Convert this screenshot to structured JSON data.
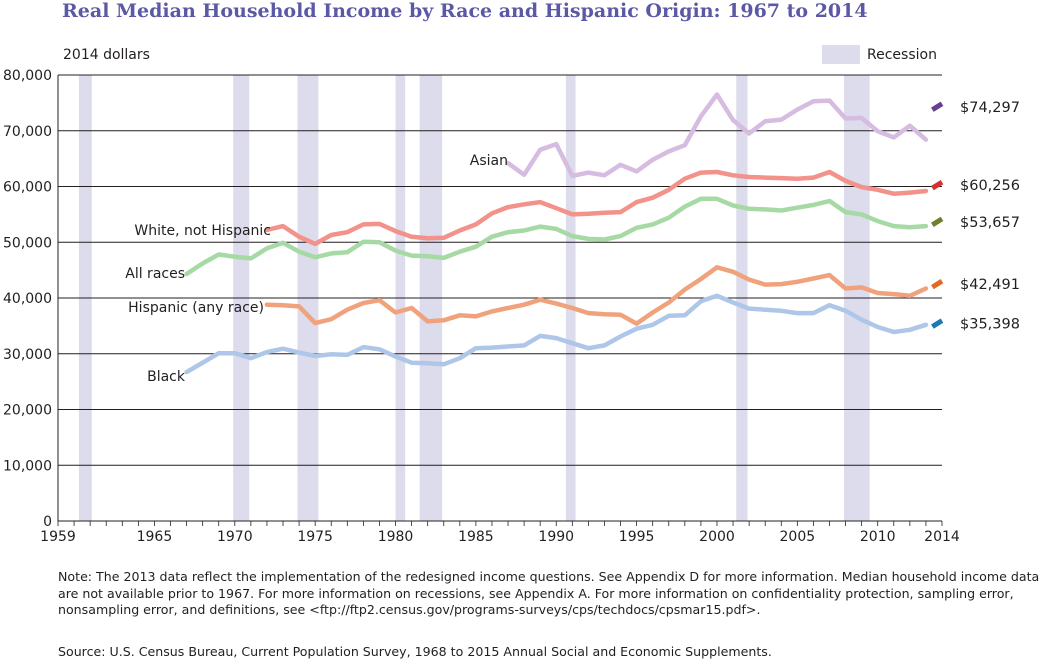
{
  "title": "Real Median Household Income by Race and Hispanic Origin: 1967 to 2014",
  "units_label": "2014 dollars",
  "legend": {
    "label": "Recession",
    "color": "#dcdcec"
  },
  "notes": "Note: The 2013 data reflect the implementation of the redesigned income questions. See Appendix D for more information. Median household income data are not available prior to 1967. For more information on recessions, see Appendix A. For more information on confidentiality protection, sampling error, nonsampling error, and definitions, see <ftp://ftp2.census.gov/programs-surveys/cps/techdocs/cpsmar15.pdf>.",
  "source": "Source: U.S. Census Bureau, Current Population Survey, 1968 to 2015 Annual Social and Economic Supplements.",
  "chart_data": {
    "type": "line",
    "title": "Real Median Household Income by Race and Hispanic Origin: 1967 to 2014",
    "ylabel": "2014 dollars",
    "xlim": [
      1959,
      2014
    ],
    "ylim": [
      0,
      80000
    ],
    "x_ticks": [
      {
        "value": 1959,
        "label": "1959"
      },
      {
        "value": 1965,
        "label": "1965"
      },
      {
        "value": 1970,
        "label": "1970"
      },
      {
        "value": 1975,
        "label": "1975"
      },
      {
        "value": 1980,
        "label": "1980"
      },
      {
        "value": 1985,
        "label": "1985"
      },
      {
        "value": 1990,
        "label": "1990"
      },
      {
        "value": 1995,
        "label": "1995"
      },
      {
        "value": 2000,
        "label": "2000"
      },
      {
        "value": 2005,
        "label": "2005"
      },
      {
        "value": 2010,
        "label": "2010"
      },
      {
        "value": 2014,
        "label": "2014"
      }
    ],
    "y_ticks": [
      {
        "value": 0,
        "label": "0"
      },
      {
        "value": 10000,
        "label": "10,000"
      },
      {
        "value": 20000,
        "label": "20,000"
      },
      {
        "value": 30000,
        "label": "30,000"
      },
      {
        "value": 40000,
        "label": "40,000"
      },
      {
        "value": 50000,
        "label": "50,000"
      },
      {
        "value": 60000,
        "label": "60,000"
      },
      {
        "value": 70000,
        "label": "70,000"
      },
      {
        "value": 80000,
        "label": "80,000"
      }
    ],
    "recessions": [
      {
        "start": 1960.3,
        "end": 1961.1
      },
      {
        "start": 1969.9,
        "end": 1970.9
      },
      {
        "start": 1973.9,
        "end": 1975.2
      },
      {
        "start": 1980.0,
        "end": 1980.6
      },
      {
        "start": 1981.5,
        "end": 1982.9
      },
      {
        "start": 1990.6,
        "end": 1991.2
      },
      {
        "start": 2001.2,
        "end": 2001.9
      },
      {
        "start": 2007.9,
        "end": 2009.5
      }
    ],
    "series": [
      {
        "name": "Asian",
        "label": "Asian",
        "color": "#d6bce0",
        "end_color": "#6a3d96",
        "end_value": 74297,
        "end_label": "$74,297",
        "x": [
          1987,
          1988,
          1989,
          1990,
          1991,
          1992,
          1993,
          1994,
          1995,
          1996,
          1997,
          1998,
          1999,
          2000,
          2001,
          2002,
          2003,
          2004,
          2005,
          2006,
          2007,
          2008,
          2009,
          2010,
          2011,
          2012,
          2013
        ],
        "values": [
          64200,
          62100,
          66600,
          67600,
          61900,
          62500,
          62000,
          63900,
          62700,
          64800,
          66300,
          67400,
          72600,
          76500,
          71900,
          69500,
          71700,
          72000,
          73800,
          75300,
          75400,
          72200,
          72300,
          69900,
          68800,
          70900,
          68400
        ]
      },
      {
        "name": "White, not Hispanic",
        "label": "White, not Hispanic",
        "color": "#f2928a",
        "end_color": "#d7302d",
        "end_value": 60256,
        "end_label": "$60,256",
        "x": [
          1972,
          1973,
          1974,
          1975,
          1976,
          1977,
          1978,
          1979,
          1980,
          1981,
          1982,
          1983,
          1984,
          1985,
          1986,
          1987,
          1988,
          1989,
          1990,
          1991,
          1992,
          1993,
          1994,
          1995,
          1996,
          1997,
          1998,
          1999,
          2000,
          2001,
          2002,
          2003,
          2004,
          2005,
          2006,
          2007,
          2008,
          2009,
          2010,
          2011,
          2012,
          2013
        ],
        "values": [
          52200,
          52900,
          51000,
          49700,
          51300,
          51800,
          53200,
          53300,
          52000,
          51000,
          50700,
          50800,
          52100,
          53200,
          55200,
          56300,
          56800,
          57200,
          56100,
          55000,
          55100,
          55300,
          55400,
          57200,
          58000,
          59400,
          61400,
          62500,
          62600,
          62000,
          61700,
          61600,
          61500,
          61400,
          61600,
          62600,
          61000,
          59900,
          59400,
          58700,
          58900,
          59200
        ]
      },
      {
        "name": "All races",
        "label": "All races",
        "color": "#a6d9a4",
        "end_color": "#6e7f2e",
        "end_value": 53657,
        "end_label": "$53,657",
        "x": [
          1967,
          1968,
          1969,
          1970,
          1971,
          1972,
          1973,
          1974,
          1975,
          1976,
          1977,
          1978,
          1979,
          1980,
          1981,
          1982,
          1983,
          1984,
          1985,
          1986,
          1987,
          1988,
          1989,
          1990,
          1991,
          1992,
          1993,
          1994,
          1995,
          1996,
          1997,
          1998,
          1999,
          2000,
          2001,
          2002,
          2003,
          2004,
          2005,
          2006,
          2007,
          2008,
          2009,
          2010,
          2011,
          2012,
          2013
        ],
        "values": [
          44300,
          46200,
          47800,
          47400,
          47100,
          48900,
          49900,
          48300,
          47300,
          48000,
          48200,
          50100,
          50000,
          48500,
          47600,
          47500,
          47200,
          48300,
          49200,
          51000,
          51800,
          52100,
          52800,
          52400,
          51100,
          50600,
          50500,
          51100,
          52600,
          53200,
          54400,
          56400,
          57800,
          57800,
          56600,
          56000,
          55900,
          55700,
          56200,
          56700,
          57400,
          55400,
          55000,
          53800,
          52900,
          52700,
          52900
        ]
      },
      {
        "name": "Hispanic (any race)",
        "label": "Hispanic (any race)",
        "color": "#f0a27c",
        "end_color": "#e06b25",
        "end_value": 42491,
        "end_label": "$42,491",
        "x": [
          1972,
          1973,
          1974,
          1975,
          1976,
          1977,
          1978,
          1979,
          1980,
          1981,
          1982,
          1983,
          1984,
          1985,
          1986,
          1987,
          1988,
          1989,
          1990,
          1991,
          1992,
          1993,
          1994,
          1995,
          1996,
          1997,
          1998,
          1999,
          2000,
          2001,
          2002,
          2003,
          2004,
          2005,
          2006,
          2007,
          2008,
          2009,
          2010,
          2011,
          2012,
          2013
        ],
        "values": [
          38800,
          38700,
          38500,
          35500,
          36200,
          37900,
          39100,
          39600,
          37400,
          38200,
          35800,
          36000,
          36900,
          36700,
          37600,
          38200,
          38800,
          39700,
          39000,
          38200,
          37300,
          37100,
          37000,
          35400,
          37400,
          39200,
          41500,
          43400,
          45500,
          44700,
          43300,
          42400,
          42500,
          42900,
          43500,
          44100,
          41700,
          41900,
          40900,
          40700,
          40400,
          41700
        ]
      },
      {
        "name": "Black",
        "label": "Black",
        "color": "#aec6e8",
        "end_color": "#1f78b4",
        "end_value": 35398,
        "end_label": "$35,398",
        "x": [
          1967,
          1968,
          1969,
          1970,
          1971,
          1972,
          1973,
          1974,
          1975,
          1976,
          1977,
          1978,
          1979,
          1980,
          1981,
          1982,
          1983,
          1984,
          1985,
          1986,
          1987,
          1988,
          1989,
          1990,
          1991,
          1992,
          1993,
          1994,
          1995,
          1996,
          1997,
          1998,
          1999,
          2000,
          2001,
          2002,
          2003,
          2004,
          2005,
          2006,
          2007,
          2008,
          2009,
          2010,
          2011,
          2012,
          2013
        ],
        "values": [
          26700,
          28400,
          30100,
          30100,
          29200,
          30300,
          30900,
          30200,
          29600,
          29900,
          29800,
          31200,
          30800,
          29500,
          28400,
          28300,
          28100,
          29200,
          31000,
          31100,
          31300,
          31500,
          33200,
          32800,
          31900,
          31000,
          31500,
          33100,
          34500,
          35200,
          36800,
          36900,
          39400,
          40400,
          39200,
          38100,
          37900,
          37700,
          37300,
          37300,
          38700,
          37700,
          36100,
          34800,
          33900,
          34300,
          35200
        ]
      }
    ]
  }
}
